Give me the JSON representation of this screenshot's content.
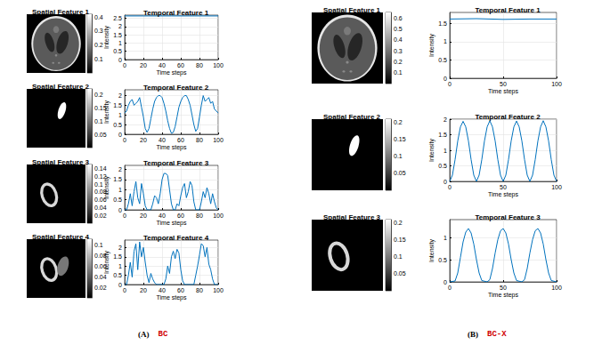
{
  "chart_data": [
    {
      "type": "image",
      "title": "Spatial Feature 1",
      "colorbar_range": [
        0,
        0.42
      ],
      "colorbar_ticks": [
        0.1,
        0.2,
        0.3,
        0.4
      ]
    },
    {
      "type": "line",
      "title": "Temporal Feature 1",
      "xlabel": "Time steps",
      "ylabel": "Intensity",
      "color": "#0072bd",
      "x": [
        0,
        25,
        50,
        75,
        100
      ],
      "values": [
        2.65,
        2.65,
        2.65,
        2.65,
        2.65
      ],
      "xlim": [
        0,
        100
      ],
      "xticks": [
        0,
        20,
        40,
        60,
        80,
        100
      ],
      "ylim": [
        0,
        2.7
      ],
      "yticks": [
        0,
        0.5,
        1,
        1.5,
        2,
        2.5
      ],
      "grid": true
    },
    {
      "type": "image",
      "title": "Spatial Feature 2",
      "colorbar_range": [
        0,
        0.22
      ],
      "colorbar_ticks": [
        0.05,
        0.1,
        0.15,
        0.2
      ]
    },
    {
      "type": "line",
      "title": "Temporal Feature 2",
      "xlabel": "Time steps",
      "ylabel": "Intensity",
      "color": "#0072bd",
      "x": [
        0,
        2,
        4,
        6,
        8,
        10,
        12,
        14,
        16,
        18,
        20,
        22,
        24,
        26,
        28,
        30,
        32,
        34,
        36,
        38,
        40,
        42,
        44,
        46,
        48,
        50,
        52,
        54,
        56,
        58,
        60,
        62,
        64,
        66,
        68,
        70,
        72,
        74,
        76,
        78,
        80,
        82,
        84,
        86,
        88,
        90,
        92,
        94,
        96,
        98,
        100
      ],
      "values": [
        1.1,
        1.2,
        1.5,
        1.7,
        1.8,
        1.5,
        1.6,
        1.7,
        1.9,
        1.4,
        0.9,
        0.3,
        0.1,
        0.3,
        0.8,
        1.3,
        1.7,
        1.9,
        2.0,
        2.0,
        1.9,
        1.6,
        1.2,
        0.7,
        0.3,
        0.05,
        0.1,
        0.4,
        0.9,
        1.4,
        1.7,
        1.9,
        2.0,
        2.0,
        1.8,
        1.5,
        1.0,
        0.5,
        0.15,
        0.3,
        0.9,
        1.5,
        2.0,
        1.7,
        1.8,
        1.9,
        1.6,
        1.7,
        1.3,
        1.2,
        1.1
      ],
      "xlim": [
        0,
        100
      ],
      "xticks": [
        0,
        20,
        40,
        60,
        80,
        100
      ],
      "ylim": [
        0,
        2.3
      ],
      "yticks": [
        0,
        0.5,
        1,
        1.5,
        2
      ],
      "grid": true
    },
    {
      "type": "image",
      "title": "Spatial Feature 3",
      "colorbar_range": [
        0,
        0.15
      ],
      "colorbar_ticks": [
        0.02,
        0.04,
        0.06,
        0.08,
        0.1,
        0.12,
        0.14
      ]
    },
    {
      "type": "line",
      "title": "Temporal Feature 3",
      "xlabel": "Time steps",
      "ylabel": "Intensity",
      "color": "#0072bd",
      "x": [
        0,
        2,
        4,
        6,
        8,
        10,
        12,
        14,
        16,
        18,
        20,
        22,
        24,
        26,
        28,
        30,
        32,
        34,
        36,
        38,
        40,
        42,
        44,
        46,
        48,
        50,
        52,
        54,
        56,
        58,
        60,
        62,
        64,
        66,
        68,
        70,
        72,
        74,
        76,
        78,
        80,
        82,
        84,
        86,
        88,
        90,
        92,
        94,
        96,
        98,
        100
      ],
      "values": [
        0,
        0,
        0.3,
        0.8,
        0.2,
        0.9,
        1.4,
        0.6,
        0.3,
        1.3,
        0.8,
        0.2,
        0,
        0,
        0,
        0.3,
        0.7,
        0.6,
        0.3,
        0.8,
        1.5,
        1.8,
        1.8,
        1.7,
        1.0,
        0.3,
        0,
        0,
        0.3,
        0.2,
        0.7,
        1.1,
        1.3,
        0.6,
        0.9,
        1.4,
        1.2,
        0.4,
        0,
        0,
        0,
        0.4,
        0.9,
        0.6,
        1.1,
        0.8,
        0.3,
        0.8,
        0.4,
        0.1,
        0
      ],
      "xlim": [
        0,
        100
      ],
      "xticks": [
        0,
        20,
        40,
        60,
        80,
        100
      ],
      "ylim": [
        0,
        2.2
      ],
      "yticks": [
        0,
        0.5,
        1,
        1.5,
        2
      ],
      "grid": true
    },
    {
      "type": "image",
      "title": "Spatial Feature 4",
      "colorbar_range": [
        0,
        0.11
      ],
      "colorbar_ticks": [
        0.02,
        0.04,
        0.06,
        0.08,
        0.1
      ]
    },
    {
      "type": "line",
      "title": "Temporal Feature 4",
      "xlabel": "Time steps",
      "ylabel": "Intensity",
      "color": "#0072bd",
      "x": [
        0,
        2,
        4,
        6,
        8,
        10,
        12,
        14,
        16,
        18,
        20,
        22,
        24,
        26,
        28,
        30,
        32,
        34,
        36,
        38,
        40,
        42,
        44,
        46,
        48,
        50,
        52,
        54,
        56,
        58,
        60,
        62,
        64,
        66,
        68,
        70,
        72,
        74,
        76,
        78,
        80,
        82,
        84,
        86,
        88,
        90,
        92,
        94,
        96,
        98,
        100
      ],
      "values": [
        0,
        0,
        0.5,
        1.2,
        0.4,
        1.8,
        2.2,
        0.8,
        2.3,
        1.5,
        2.0,
        1.2,
        0.5,
        0.1,
        0.6,
        0.3,
        0.1,
        0,
        0,
        0,
        0,
        0,
        0.3,
        1.0,
        0.6,
        1.5,
        1.8,
        1.4,
        1.9,
        1.7,
        0.8,
        0.2,
        0,
        0,
        0,
        0,
        0,
        0,
        0.5,
        1.0,
        1.6,
        2.2,
        2.1,
        1.5,
        2.0,
        1.1,
        0.8,
        0.3,
        0,
        0,
        0
      ],
      "xlim": [
        0,
        100
      ],
      "xticks": [
        0,
        20,
        40,
        60,
        80,
        100
      ],
      "ylim": [
        0,
        2.4
      ],
      "yticks": [
        0,
        0.5,
        1,
        1.5,
        2
      ],
      "grid": true
    },
    {
      "type": "image",
      "title": "Spatial Feature 1",
      "colorbar_range": [
        0,
        0.65
      ],
      "colorbar_ticks": [
        0.1,
        0.2,
        0.3,
        0.4,
        0.5,
        0.6
      ]
    },
    {
      "type": "line",
      "title": "Temporal Feature 1",
      "xlabel": "Time steps",
      "ylabel": "Intensity",
      "color": "#0072bd",
      "x": [
        0,
        25,
        50,
        75,
        100
      ],
      "values": [
        1.62,
        1.63,
        1.61,
        1.62,
        1.62
      ],
      "xlim": [
        0,
        100
      ],
      "xticks": [
        0,
        50,
        100
      ],
      "ylim": [
        0,
        1.8
      ],
      "yticks": [
        0,
        0.5,
        1,
        1.5
      ],
      "grid": true
    },
    {
      "type": "image",
      "title": "Spatial Feature 2",
      "colorbar_range": [
        0,
        0.21
      ],
      "colorbar_ticks": [
        0.05,
        0.1,
        0.15,
        0.2
      ]
    },
    {
      "type": "line",
      "title": "Temporal Feature 2",
      "xlabel": "Time steps",
      "ylabel": "Intensity",
      "color": "#0072bd",
      "x": [
        0,
        2.5,
        5,
        7.5,
        10,
        12.5,
        15,
        17.5,
        20,
        22.5,
        25,
        27.5,
        30,
        32.5,
        35,
        37.5,
        40,
        42.5,
        45,
        47.5,
        50,
        52.5,
        55,
        57.5,
        60,
        62.5,
        65,
        67.5,
        70,
        72.5,
        75,
        77.5,
        80,
        82.5,
        85,
        87.5,
        90,
        92.5,
        95,
        97.5,
        100
      ],
      "values": [
        0,
        0.2,
        0.7,
        1.3,
        1.75,
        1.93,
        1.75,
        1.3,
        0.7,
        0.2,
        0,
        0.2,
        0.7,
        1.3,
        1.75,
        1.95,
        1.75,
        1.3,
        0.7,
        0.2,
        0,
        0.2,
        0.7,
        1.3,
        1.75,
        1.94,
        1.75,
        1.3,
        0.7,
        0.2,
        0,
        0.2,
        0.7,
        1.3,
        1.75,
        1.95,
        1.75,
        1.3,
        0.7,
        0.2,
        0
      ],
      "xlim": [
        0,
        100
      ],
      "xticks": [
        0,
        50,
        100
      ],
      "ylim": [
        0,
        2
      ],
      "yticks": [
        0,
        0.5,
        1,
        1.5,
        2
      ],
      "grid": true
    },
    {
      "type": "image",
      "title": "Spatial Feature 3",
      "colorbar_range": [
        0,
        0.21
      ],
      "colorbar_ticks": [
        0.05,
        0.1,
        0.15,
        0.2
      ]
    },
    {
      "type": "line",
      "title": "Temporal Feature 3",
      "xlabel": "Time steps",
      "ylabel": "Intensity",
      "color": "#0072bd",
      "x": [
        0,
        5,
        7.5,
        10,
        12.5,
        15,
        17.5,
        20,
        22.5,
        25,
        27.5,
        30,
        35,
        37.5,
        40,
        42.5,
        45,
        47.5,
        50,
        52.5,
        55,
        57.5,
        60,
        62.5,
        67.5,
        70,
        72.5,
        75,
        77.5,
        80,
        82.5,
        85,
        87.5,
        90,
        92.5,
        95,
        100
      ],
      "values": [
        0,
        0.02,
        0.2,
        0.55,
        0.9,
        1.12,
        1.2,
        1.1,
        0.85,
        0.5,
        0.2,
        0.03,
        0,
        0.05,
        0.3,
        0.65,
        0.95,
        1.15,
        1.2,
        1.1,
        0.85,
        0.5,
        0.2,
        0.03,
        0,
        0.05,
        0.3,
        0.65,
        0.95,
        1.15,
        1.2,
        1.1,
        0.85,
        0.5,
        0.2,
        0.03,
        0
      ],
      "xlim": [
        0,
        100
      ],
      "xticks": [
        0,
        50,
        100
      ],
      "ylim": [
        0,
        1.4
      ],
      "yticks": [
        0,
        0.5,
        1
      ],
      "grid": true
    }
  ],
  "captions": [
    {
      "label": "(A)",
      "text": "BC",
      "color": "#d00000"
    },
    {
      "label": "(B)",
      "text": "BC-X",
      "color": "#d00000"
    }
  ]
}
